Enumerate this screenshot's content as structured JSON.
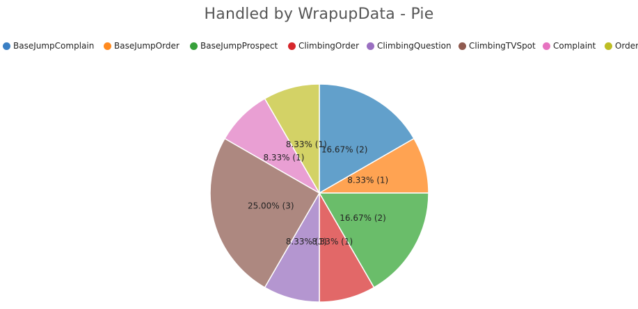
{
  "chart_data": {
    "type": "pie",
    "title": "Handled by WrapupData - Pie",
    "legend_position": "top",
    "slices": [
      {
        "name": "BaseJumpComplain",
        "value": 2,
        "percent_label": "16.67% (2)",
        "color": "#3a7fc4"
      },
      {
        "name": "BaseJumpOrder",
        "value": 1,
        "percent_label": "8.33% (1)",
        "color": "#ff8a1f"
      },
      {
        "name": "BaseJumpProspect",
        "value": 2,
        "percent_label": "16.67% (2)",
        "color": "#36a03a"
      },
      {
        "name": "ClimbingOrder",
        "value": 1,
        "percent_label": "8.33% (1)",
        "color": "#d6262b"
      },
      {
        "name": "ClimbingQuestion",
        "value": 1,
        "percent_label": "8.33% (1)",
        "color": "#9a6fc1"
      },
      {
        "name": "ClimbingTVSpot",
        "value": 3,
        "percent_label": "25.00% (3)",
        "color": "#8f5a4f"
      },
      {
        "name": "Complaint",
        "value": 1,
        "percent_label": "8.33% (1)",
        "color": "#e673c0"
      },
      {
        "name": "Order",
        "value": 1,
        "percent_label": "8.33% (1)",
        "color": "#bdbd24"
      }
    ],
    "slice_colors": [
      "#62a0cb",
      "#ffa352",
      "#6abd6a",
      "#e26868",
      "#b496d0",
      "#ad8880",
      "#e99fd3",
      "#d3d266"
    ]
  }
}
